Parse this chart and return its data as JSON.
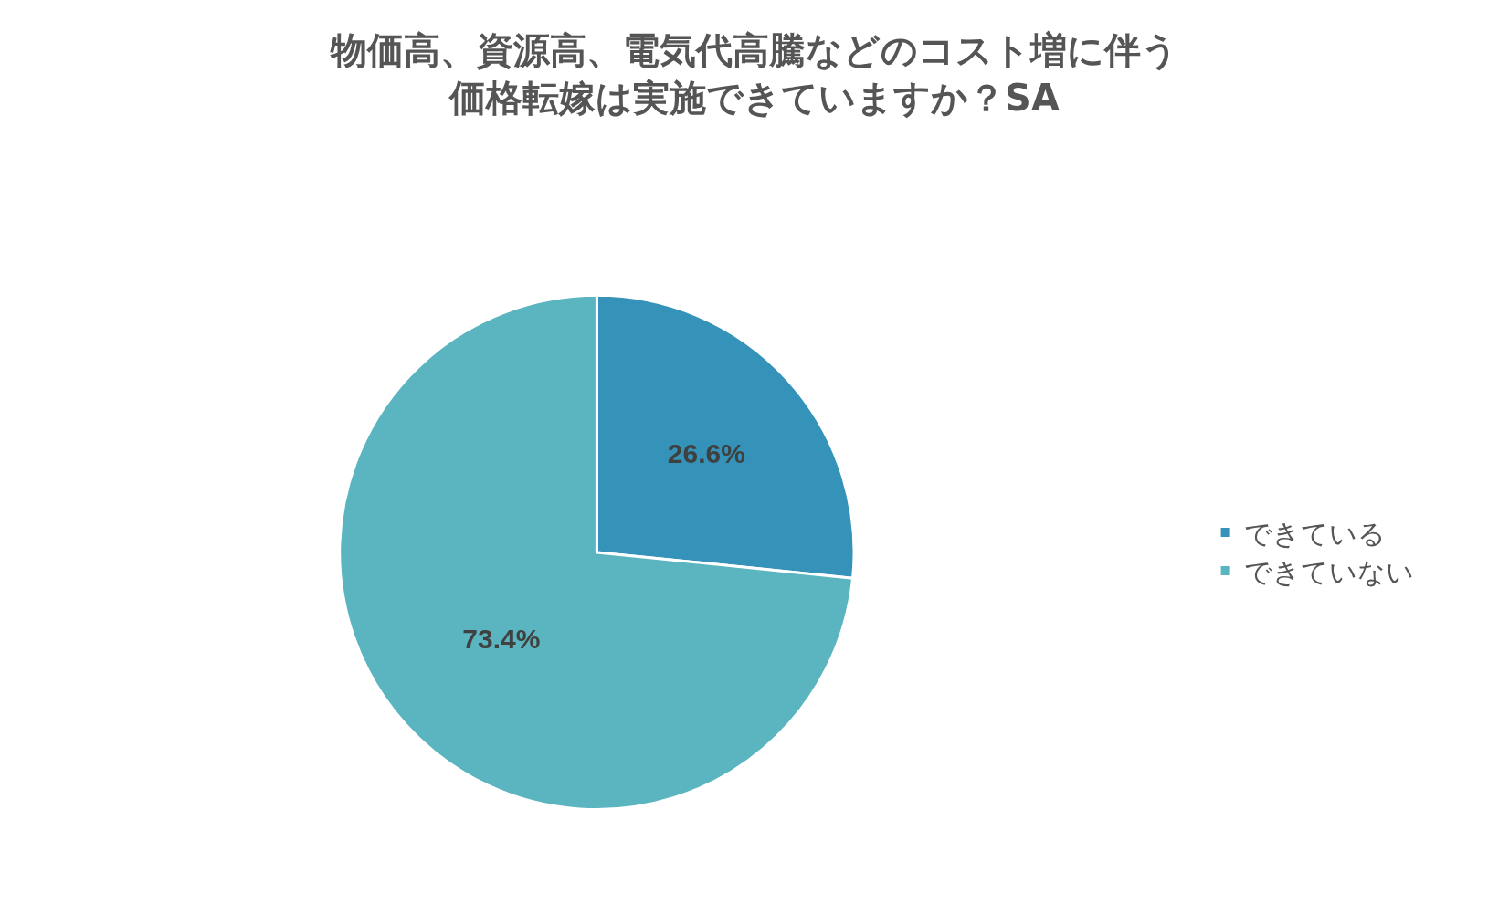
{
  "chart_data": {
    "type": "pie",
    "title": "物価高、資源高、電気代高騰などのコスト増に伴う価格転嫁は実施できていますか？SA",
    "categories": [
      "できている",
      "できていない"
    ],
    "values": [
      26.6,
      73.4
    ],
    "colors": [
      "#3592b8",
      "#5ab5c0"
    ],
    "value_labels": [
      "26.6%",
      "73.4%"
    ],
    "legend": "right"
  }
}
